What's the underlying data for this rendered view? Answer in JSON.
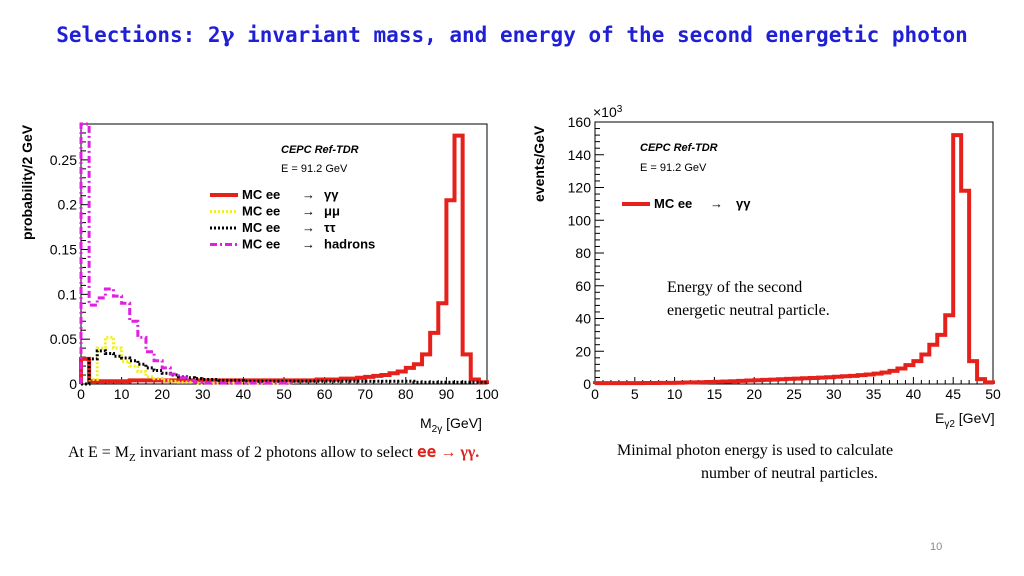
{
  "title": {
    "prefix": "Selections: 2",
    "gamma": "γ",
    "suffix": " invariant mass, and energy of the second energetic photon"
  },
  "caption_left": {
    "pre": "At E = M",
    "sub": "Z",
    "mid": " invariant mass of 2 photons  allow to select ",
    "ee": "ee",
    "arrow": " → γγ."
  },
  "caption_right": {
    "line1": "Minimal photon energy is used to calculate",
    "line2": "number of neutral particles."
  },
  "page_number": "10",
  "colors": {
    "title": "#1f1fd6",
    "red": "#e6201b",
    "yellow": "#f2ef1a",
    "black": "#000000",
    "magenta": "#e020e0"
  },
  "chart_data": [
    {
      "type": "line",
      "step": true,
      "ylabel": "probability/2 GeV",
      "xlabel": "M",
      "xlabel_sub": "2γ",
      "xlabel_unit": " [GeV]",
      "xlim": [
        0,
        100
      ],
      "ylim": [
        0,
        0.29
      ],
      "xticks": [
        0,
        10,
        20,
        30,
        40,
        50,
        60,
        70,
        80,
        90,
        100
      ],
      "yticks": [
        0,
        0.05,
        0.1,
        0.15,
        0.2,
        0.25
      ],
      "ytick_labels": [
        "0",
        "0.05",
        "0.1",
        "0.15",
        "0.2",
        "0.25"
      ],
      "text_lines": [
        "CEPC Ref-TDR",
        "E = 91.2 GeV"
      ],
      "legend_position": "top-right",
      "series": [
        {
          "name_prefix": "MC ee",
          "name_arrow": "→",
          "name_final": "γγ",
          "color": "#e6201b",
          "style": "solid",
          "x": [
            0,
            2,
            4,
            6,
            8,
            10,
            12,
            14,
            16,
            18,
            20,
            22,
            24,
            26,
            28,
            30,
            32,
            34,
            36,
            38,
            40,
            42,
            44,
            46,
            48,
            50,
            52,
            54,
            56,
            58,
            60,
            62,
            64,
            66,
            68,
            70,
            72,
            74,
            76,
            78,
            80,
            82,
            84,
            86,
            88,
            90,
            92,
            94,
            96,
            98
          ],
          "values": [
            0.028,
            0.003,
            0.003,
            0.003,
            0.003,
            0.003,
            0.004,
            0.004,
            0.004,
            0.004,
            0.004,
            0.004,
            0.004,
            0.004,
            0.004,
            0.004,
            0.004,
            0.004,
            0.004,
            0.004,
            0.004,
            0.004,
            0.004,
            0.004,
            0.004,
            0.004,
            0.004,
            0.004,
            0.004,
            0.005,
            0.005,
            0.005,
            0.006,
            0.006,
            0.007,
            0.008,
            0.009,
            0.01,
            0.012,
            0.014,
            0.018,
            0.022,
            0.033,
            0.057,
            0.09,
            0.205,
            0.277,
            0.033,
            0.005,
            0.002
          ]
        },
        {
          "name_prefix": "MC ee",
          "name_arrow": "→",
          "name_final": "μμ",
          "color": "#f2ef1a",
          "style": "dotted",
          "x": [
            0,
            2,
            4,
            6,
            8,
            10,
            12,
            14,
            16,
            18,
            20,
            22,
            24,
            26,
            28,
            30,
            32,
            34,
            36,
            38,
            40,
            42,
            44,
            46,
            48,
            50
          ],
          "values": [
            0.0,
            0.005,
            0.04,
            0.052,
            0.04,
            0.025,
            0.02,
            0.014,
            0.008,
            0.006,
            0.004,
            0.003,
            0.002,
            0.002,
            0.001,
            0.001,
            0.001,
            0.001,
            0.001,
            0.001,
            0.001,
            0.001,
            0.001,
            0.001,
            0.001,
            0.001
          ]
        },
        {
          "name_prefix": "MC ee",
          "name_arrow": "→",
          "name_final": "ττ",
          "color": "#000000",
          "style": "dotted",
          "x": [
            0,
            2,
            4,
            6,
            8,
            10,
            12,
            14,
            16,
            18,
            20,
            22,
            24,
            26,
            28,
            30,
            32,
            34,
            36,
            38,
            40,
            42,
            44,
            46,
            48,
            50,
            52,
            54,
            56,
            58,
            60,
            62,
            64,
            66,
            68,
            70,
            72,
            74,
            76,
            78,
            80,
            82,
            84,
            86,
            88,
            90,
            92,
            94,
            96,
            98
          ],
          "values": [
            0.0,
            0.028,
            0.037,
            0.034,
            0.031,
            0.029,
            0.026,
            0.022,
            0.018,
            0.015,
            0.012,
            0.01,
            0.008,
            0.007,
            0.006,
            0.005,
            0.005,
            0.004,
            0.004,
            0.004,
            0.003,
            0.003,
            0.003,
            0.003,
            0.003,
            0.003,
            0.003,
            0.003,
            0.003,
            0.003,
            0.003,
            0.003,
            0.003,
            0.003,
            0.003,
            0.003,
            0.003,
            0.003,
            0.003,
            0.003,
            0.003,
            0.002,
            0.002,
            0.002,
            0.002,
            0.002,
            0.002,
            0.002,
            0.002,
            0.002
          ]
        },
        {
          "name_prefix": "MC ee",
          "name_arrow": "→",
          "name_final": "hadrons",
          "color": "#e020e0",
          "style": "dashdot",
          "x": [
            0,
            2,
            4,
            6,
            8,
            10,
            12,
            14,
            16,
            18,
            20,
            22,
            24,
            26,
            28,
            30,
            32,
            34,
            36,
            38,
            40,
            42,
            44,
            46,
            48,
            50
          ],
          "values": [
            0.29,
            0.088,
            0.096,
            0.106,
            0.098,
            0.09,
            0.07,
            0.052,
            0.036,
            0.026,
            0.018,
            0.011,
            0.007,
            0.004,
            0.002,
            0.001,
            0.001,
            0.001,
            0.001,
            0.001,
            0.001,
            0.001,
            0.001,
            0.001,
            0.001,
            0.001
          ]
        }
      ]
    },
    {
      "type": "line",
      "step": true,
      "ylabel": "events/GeV",
      "xlabel": "E",
      "xlabel_sub": "γ2",
      "xlabel_unit": " [GeV]",
      "y_multiplier": "×10",
      "y_multiplier_exp": "3",
      "xlim": [
        0,
        50
      ],
      "ylim": [
        0,
        160
      ],
      "xticks": [
        0,
        5,
        10,
        15,
        20,
        25,
        30,
        35,
        40,
        45,
        50
      ],
      "yticks": [
        0,
        20,
        40,
        60,
        80,
        100,
        120,
        140,
        160
      ],
      "text_lines": [
        "CEPC Ref-TDR",
        "E = 91.2 GeV"
      ],
      "annotation_lines": [
        "Energy of the second",
        "energetic neutral particle."
      ],
      "legend_position": "top-left",
      "series": [
        {
          "name_prefix": "MC ee",
          "name_arrow": "→",
          "name_final": "γγ",
          "color": "#e6201b",
          "style": "solid",
          "x": [
            0,
            1,
            2,
            3,
            4,
            5,
            6,
            7,
            8,
            9,
            10,
            11,
            12,
            13,
            14,
            15,
            16,
            17,
            18,
            19,
            20,
            21,
            22,
            23,
            24,
            25,
            26,
            27,
            28,
            29,
            30,
            31,
            32,
            33,
            34,
            35,
            36,
            37,
            38,
            39,
            40,
            41,
            42,
            43,
            44,
            45,
            46,
            47,
            48,
            49
          ],
          "values": [
            0.5,
            0.5,
            0.5,
            0.5,
            0.5,
            0.5,
            0.6,
            0.6,
            0.7,
            0.7,
            0.8,
            0.9,
            1.0,
            1.1,
            1.2,
            1.4,
            1.5,
            1.7,
            1.9,
            2.1,
            2.3,
            2.5,
            2.7,
            2.9,
            3.1,
            3.3,
            3.5,
            3.7,
            3.9,
            4.1,
            4.4,
            4.7,
            5.0,
            5.4,
            5.8,
            6.3,
            7.0,
            8.0,
            9.5,
            11.5,
            14.0,
            18.0,
            24.0,
            30.0,
            42.0,
            152.0,
            118.0,
            14.0,
            3.0,
            1.0
          ]
        }
      ]
    }
  ]
}
